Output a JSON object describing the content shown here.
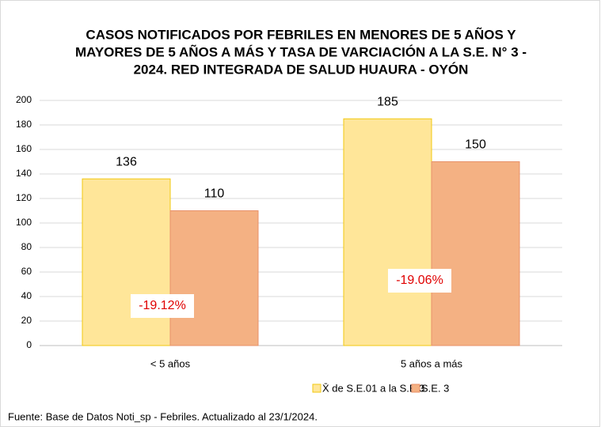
{
  "chart_data": {
    "type": "bar",
    "title": [
      "CASOS NOTIFICADOS POR FEBRILES EN MENORES DE 5 AÑOS Y",
      "MAYORES DE 5 AÑOS A MÁS Y TASA DE VARCIACIÓN A LA S.E. N° 3 -",
      "2024. RED INTEGRADA DE SALUD HUAURA - OYÓN"
    ],
    "categories": [
      "< 5 años",
      "5 años a más"
    ],
    "series": [
      {
        "name": "X̄ de S.E.01 a la S.E.3",
        "color": "#ffe699",
        "values": [
          136,
          185
        ]
      },
      {
        "name": "S.E. 3",
        "color": "#f4b183",
        "values": [
          110,
          150
        ]
      }
    ],
    "annotations": [
      "-19.12%",
      "-19.06%"
    ],
    "ylim": [
      0,
      200
    ],
    "yticks": [
      0,
      20,
      40,
      60,
      80,
      100,
      120,
      140,
      160,
      180,
      200
    ],
    "grid": true,
    "legend": "bottom",
    "footnote": "Fuente: Base de Datos Noti_sp - Febriles. Actualizado al 23/1/2024."
  }
}
